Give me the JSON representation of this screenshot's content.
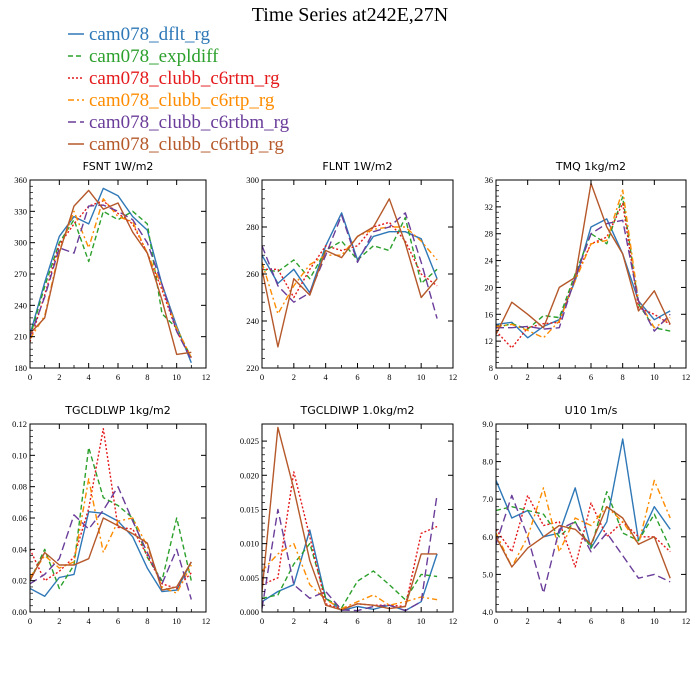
{
  "title": "Time Series at242E,27N",
  "legend": [
    {
      "name": "cam078_dflt_rg",
      "color": "#2f78b7",
      "dash": "solid"
    },
    {
      "name": "cam078_expldiff",
      "color": "#2ca02c",
      "dash": "dash"
    },
    {
      "name": "cam078_clubb_c6rtm_rg",
      "color": "#e41a1c",
      "dash": "dot"
    },
    {
      "name": "cam078_clubb_c6rtp_rg",
      "color": "#ff8c00",
      "dash": "dashdot"
    },
    {
      "name": "cam078_clubb_c6rtbm_rg",
      "color": "#6a3d9a",
      "dash": "longdash"
    },
    {
      "name": "cam078_clubb_c6rtbp_rg",
      "color": "#b5582a",
      "dash": "solid"
    }
  ],
  "chart_data": [
    {
      "type": "line",
      "title": "FSNT  1W/m2",
      "xlim": [
        0,
        12
      ],
      "ylim": [
        180,
        360
      ],
      "xticks": [
        "0",
        "2",
        "4",
        "6",
        "8",
        "10",
        "12"
      ],
      "yticks": [
        "180",
        "210",
        "240",
        "270",
        "300",
        "330",
        "360"
      ],
      "x": [
        0,
        1,
        2,
        3,
        4,
        5,
        6,
        7,
        8,
        9,
        10,
        11
      ],
      "series": [
        {
          "name": "cam078_dflt_rg",
          "values": [
            212,
            262,
            306,
            325,
            318,
            352,
            345,
            325,
            312,
            260,
            220,
            185
          ]
        },
        {
          "name": "cam078_expldiff",
          "values": [
            210,
            258,
            300,
            322,
            282,
            330,
            322,
            330,
            318,
            232,
            218,
            190
          ]
        },
        {
          "name": "cam078_clubb_c6rtm_rg",
          "values": [
            205,
            250,
            298,
            318,
            335,
            340,
            328,
            318,
            290,
            255,
            215,
            190
          ]
        },
        {
          "name": "cam078_clubb_c6rtp_rg",
          "values": [
            208,
            230,
            292,
            330,
            295,
            342,
            325,
            320,
            290,
            258,
            218,
            190
          ]
        },
        {
          "name": "cam078_clubb_c6rtbm_rg",
          "values": [
            210,
            248,
            295,
            290,
            335,
            336,
            330,
            322,
            300,
            260,
            215,
            188
          ]
        },
        {
          "name": "cam078_clubb_c6rtbp_rg",
          "values": [
            213,
            228,
            290,
            335,
            350,
            332,
            338,
            310,
            290,
            245,
            193,
            195
          ]
        }
      ]
    },
    {
      "type": "line",
      "title": "FLNT  1W/m2",
      "xlim": [
        0,
        12
      ],
      "ylim": [
        220,
        300
      ],
      "xticks": [
        "0",
        "2",
        "4",
        "6",
        "8",
        "10",
        "12"
      ],
      "yticks": [
        "220",
        "240",
        "260",
        "280",
        "300"
      ],
      "x": [
        0,
        1,
        2,
        3,
        4,
        5,
        6,
        7,
        8,
        9,
        10,
        11
      ],
      "series": [
        {
          "name": "cam078_dflt_rg",
          "values": [
            268,
            256,
            262,
            252,
            272,
            286,
            266,
            276,
            278,
            278,
            275,
            258
          ]
        },
        {
          "name": "cam078_expldiff",
          "values": [
            262,
            261,
            266,
            258,
            270,
            274,
            266,
            272,
            270,
            284,
            256,
            262
          ]
        },
        {
          "name": "cam078_clubb_c6rtm_rg",
          "values": [
            262,
            262,
            250,
            262,
            272,
            270,
            272,
            280,
            282,
            274,
            260,
            255
          ]
        },
        {
          "name": "cam078_clubb_c6rtp_rg",
          "values": [
            265,
            243,
            255,
            264,
            268,
            268,
            276,
            279,
            280,
            280,
            274,
            266
          ]
        },
        {
          "name": "cam078_clubb_c6rtbm_rg",
          "values": [
            272,
            255,
            248,
            252,
            268,
            285,
            265,
            278,
            280,
            286,
            265,
            241
          ]
        },
        {
          "name": "cam078_clubb_c6rtbp_rg",
          "values": [
            262,
            229,
            258,
            251,
            270,
            267,
            276,
            280,
            292,
            273,
            250,
            258
          ]
        }
      ]
    },
    {
      "type": "line",
      "title": "TMQ   1kg/m2",
      "xlim": [
        0,
        12
      ],
      "ylim": [
        8,
        36
      ],
      "xticks": [
        "0",
        "2",
        "4",
        "6",
        "8",
        "10",
        "12"
      ],
      "yticks": [
        "8",
        "12",
        "16",
        "20",
        "24",
        "28",
        "32",
        "36"
      ],
      "x": [
        0,
        1,
        2,
        3,
        4,
        5,
        6,
        7,
        8,
        9,
        10,
        11
      ],
      "series": [
        {
          "name": "cam078_dflt_rg",
          "values": [
            14.5,
            14.8,
            12.5,
            14.2,
            15.2,
            21.0,
            29.0,
            30.2,
            25.0,
            18.0,
            15.2,
            16.5
          ]
        },
        {
          "name": "cam078_expldiff",
          "values": [
            14.0,
            14.6,
            13.8,
            15.8,
            15.5,
            22.0,
            28.0,
            26.5,
            33.5,
            17.5,
            14.0,
            13.5
          ]
        },
        {
          "name": "cam078_clubb_c6rtm_rg",
          "values": [
            13.5,
            11.0,
            14.0,
            14.6,
            14.8,
            21.5,
            26.5,
            27.5,
            32.5,
            17.0,
            16.0,
            14.5
          ]
        },
        {
          "name": "cam078_clubb_c6rtp_rg",
          "values": [
            14.2,
            14.5,
            13.6,
            12.5,
            15.0,
            21.0,
            26.5,
            27.0,
            34.5,
            18.0,
            14.0,
            15.5
          ]
        },
        {
          "name": "cam078_clubb_c6rtbm_rg",
          "values": [
            14.0,
            14.0,
            14.2,
            13.8,
            14.0,
            21.5,
            28.0,
            29.5,
            30.0,
            18.0,
            13.5,
            16.0
          ]
        },
        {
          "name": "cam078_clubb_c6rtbp_rg",
          "values": [
            13.0,
            17.8,
            16.0,
            14.0,
            20.0,
            21.5,
            35.5,
            29.0,
            25.0,
            16.5,
            19.5,
            14.5
          ]
        }
      ]
    },
    {
      "type": "line",
      "title": "TGCLDLWP   1kg/m2",
      "xlim": [
        0,
        12
      ],
      "ylim": [
        0.0,
        0.12
      ],
      "xticks": [
        "0",
        "2",
        "4",
        "6",
        "8",
        "10",
        "12"
      ],
      "yticks": [
        "0.00",
        "0.02",
        "0.04",
        "0.06",
        "0.08",
        "0.10",
        "0.12"
      ],
      "x": [
        0,
        1,
        2,
        3,
        4,
        5,
        6,
        7,
        8,
        9,
        10,
        11
      ],
      "series": [
        {
          "name": "cam078_dflt_rg",
          "values": [
            0.015,
            0.01,
            0.022,
            0.024,
            0.064,
            0.063,
            0.058,
            0.048,
            0.028,
            0.013,
            0.014,
            0.032
          ]
        },
        {
          "name": "cam078_expldiff",
          "values": [
            0.02,
            0.04,
            0.015,
            0.03,
            0.105,
            0.073,
            0.068,
            0.06,
            0.035,
            0.02,
            0.06,
            0.02
          ]
        },
        {
          "name": "cam078_clubb_c6rtm_rg",
          "values": [
            0.04,
            0.02,
            0.026,
            0.035,
            0.066,
            0.117,
            0.054,
            0.053,
            0.036,
            0.018,
            0.015,
            0.025
          ]
        },
        {
          "name": "cam078_clubb_c6rtp_rg",
          "values": [
            0.022,
            0.036,
            0.028,
            0.032,
            0.085,
            0.038,
            0.058,
            0.06,
            0.042,
            0.016,
            0.012,
            0.03
          ]
        },
        {
          "name": "cam078_clubb_c6rtbm_rg",
          "values": [
            0.018,
            0.024,
            0.034,
            0.062,
            0.053,
            0.065,
            0.08,
            0.058,
            0.038,
            0.018,
            0.04,
            0.008
          ]
        },
        {
          "name": "cam078_clubb_c6rtbp_rg",
          "values": [
            0.02,
            0.038,
            0.03,
            0.03,
            0.034,
            0.06,
            0.055,
            0.05,
            0.044,
            0.014,
            0.016,
            0.032
          ]
        }
      ]
    },
    {
      "type": "line",
      "title": "TGCLDIWP   1.0kg/m2",
      "xlim": [
        0,
        12
      ],
      "ylim": [
        0.0,
        0.0275
      ],
      "xticks": [
        "0",
        "2",
        "4",
        "6",
        "8",
        "10",
        "12"
      ],
      "yticks": [
        "0.000",
        "0.005",
        "0.010",
        "0.015",
        "0.020",
        "0.025"
      ],
      "x": [
        0,
        1,
        2,
        3,
        4,
        5,
        6,
        7,
        8,
        9,
        10,
        11
      ],
      "series": [
        {
          "name": "cam078_dflt_rg",
          "values": [
            0.0015,
            0.003,
            0.004,
            0.012,
            0.002,
            0.0002,
            0.0008,
            0.0004,
            0.001,
            0.0002,
            0.0015,
            0.0085
          ]
        },
        {
          "name": "cam078_expldiff",
          "values": [
            0.002,
            0.0025,
            0.007,
            0.01,
            0.002,
            0.0006,
            0.0045,
            0.006,
            0.004,
            0.0018,
            0.0055,
            0.0052
          ]
        },
        {
          "name": "cam078_clubb_c6rtm_rg",
          "values": [
            0.004,
            0.005,
            0.0205,
            0.011,
            0.0012,
            0.0004,
            0.0012,
            0.001,
            0.001,
            0.0008,
            0.0115,
            0.0125
          ]
        },
        {
          "name": "cam078_clubb_c6rtp_rg",
          "values": [
            0.006,
            0.0085,
            0.01,
            0.004,
            0.0018,
            0.0005,
            0.0015,
            0.0025,
            0.001,
            0.0015,
            0.0022,
            0.0018
          ]
        },
        {
          "name": "cam078_clubb_c6rtbm_rg",
          "values": [
            0.0005,
            0.015,
            0.004,
            0.002,
            0.003,
            0.0003,
            0.0002,
            0.0008,
            0.001,
            0.0002,
            0.0015,
            0.0172
          ]
        },
        {
          "name": "cam078_clubb_c6rtbp_rg",
          "values": [
            0.003,
            0.027,
            0.018,
            0.0075,
            0.001,
            0.0003,
            0.0012,
            0.001,
            0.0005,
            0.0008,
            0.0085,
            0.0085
          ]
        }
      ]
    },
    {
      "type": "line",
      "title": "U10   1m/s",
      "xlim": [
        0,
        12
      ],
      "ylim": [
        4.0,
        9.0
      ],
      "xticks": [
        "0",
        "2",
        "4",
        "6",
        "8",
        "10",
        "12"
      ],
      "yticks": [
        "4.0",
        "5.0",
        "6.0",
        "7.0",
        "8.0",
        "9.0"
      ],
      "x": [
        0,
        1,
        2,
        3,
        4,
        5,
        6,
        7,
        8,
        9,
        10,
        11
      ],
      "series": [
        {
          "name": "cam078_dflt_rg",
          "values": [
            7.5,
            6.5,
            6.7,
            6.0,
            6.1,
            7.3,
            5.7,
            6.4,
            8.6,
            5.9,
            6.8,
            6.2
          ]
        },
        {
          "name": "cam078_expldiff",
          "values": [
            6.7,
            6.8,
            6.7,
            6.6,
            6.0,
            6.4,
            5.7,
            7.2,
            6.1,
            5.9,
            6.6,
            5.7
          ]
        },
        {
          "name": "cam078_clubb_c6rtm_rg",
          "values": [
            6.2,
            5.6,
            7.1,
            6.3,
            6.4,
            5.2,
            6.9,
            6.0,
            6.4,
            6.0,
            6.0,
            5.6
          ]
        },
        {
          "name": "cam078_clubb_c6rtp_rg",
          "values": [
            6.1,
            5.2,
            6.0,
            7.3,
            5.6,
            6.5,
            6.3,
            6.8,
            6.4,
            5.8,
            7.5,
            6.5
          ]
        },
        {
          "name": "cam078_clubb_c6rtbm_rg",
          "values": [
            5.8,
            7.1,
            6.0,
            4.5,
            6.2,
            6.4,
            5.6,
            6.1,
            5.5,
            4.9,
            5.0,
            4.8
          ]
        },
        {
          "name": "cam078_clubb_c6rtbp_rg",
          "values": [
            6.0,
            5.2,
            5.7,
            6.0,
            6.3,
            6.2,
            5.8,
            6.8,
            6.5,
            5.8,
            6.0,
            4.9
          ]
        }
      ]
    }
  ]
}
